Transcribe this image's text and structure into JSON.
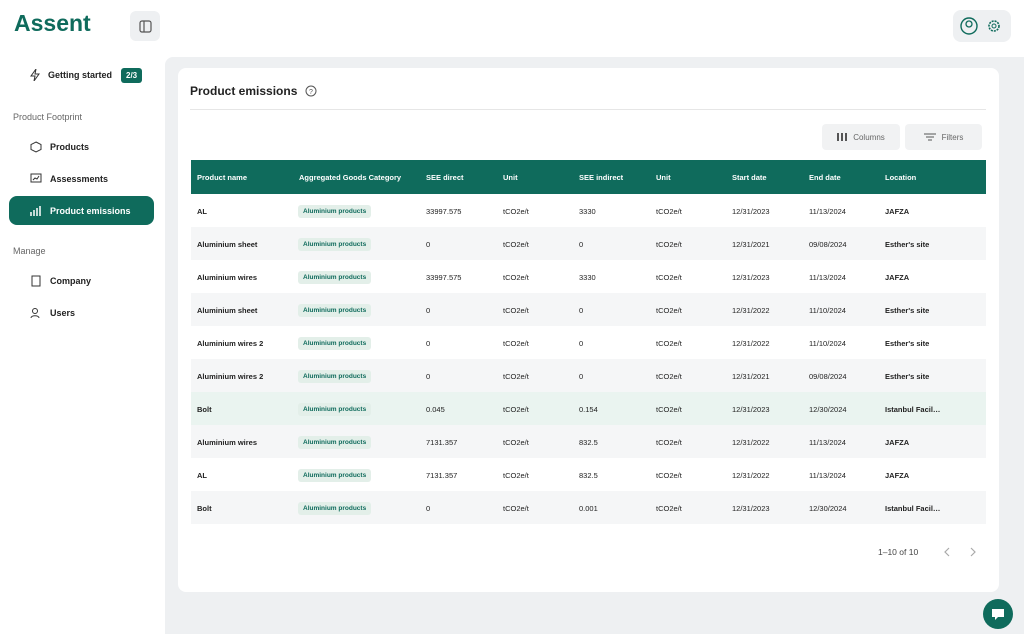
{
  "header": {
    "logo": "Assent"
  },
  "sidebar": {
    "getting_started": {
      "label": "Getting started",
      "badge": "2/3"
    },
    "sections": [
      {
        "title": "Product Footprint",
        "items": [
          "Products",
          "Assessments",
          "Product emissions"
        ]
      },
      {
        "title": "Manage",
        "items": [
          "Company",
          "Users"
        ]
      }
    ]
  },
  "page": {
    "title": "Product emissions",
    "toolbar": [
      "Columns",
      "Filters"
    ],
    "pagination": "1–10 of 10"
  },
  "table": {
    "columns": [
      "Product name",
      "Aggregated Goods Category",
      "SEE direct",
      "Unit",
      "SEE indirect",
      "Unit",
      "Start date",
      "End date",
      "Location"
    ],
    "rows": [
      [
        "AL",
        "Aluminium products",
        "33997.575",
        "tCO2e/t",
        "3330",
        "tCO2e/t",
        "12/31/2023",
        "11/13/2024",
        "JAFZA"
      ],
      [
        "Aluminium sheet",
        "Aluminium products",
        "0",
        "tCO2e/t",
        "0",
        "tCO2e/t",
        "12/31/2021",
        "09/08/2024",
        "Esther's site"
      ],
      [
        "Aluminium wires",
        "Aluminium products",
        "33997.575",
        "tCO2e/t",
        "3330",
        "tCO2e/t",
        "12/31/2023",
        "11/13/2024",
        "JAFZA"
      ],
      [
        "Aluminium sheet",
        "Aluminium products",
        "0",
        "tCO2e/t",
        "0",
        "tCO2e/t",
        "12/31/2022",
        "11/10/2024",
        "Esther's site"
      ],
      [
        "Aluminium wires 2",
        "Aluminium products",
        "0",
        "tCO2e/t",
        "0",
        "tCO2e/t",
        "12/31/2022",
        "11/10/2024",
        "Esther's site"
      ],
      [
        "Aluminium wires 2",
        "Aluminium products",
        "0",
        "tCO2e/t",
        "0",
        "tCO2e/t",
        "12/31/2021",
        "09/08/2024",
        "Esther's site"
      ],
      [
        "Bolt",
        "Aluminium products",
        "0.045",
        "tCO2e/t",
        "0.154",
        "tCO2e/t",
        "12/31/2023",
        "12/30/2024",
        "Istanbul Facil…"
      ],
      [
        "Aluminium wires",
        "Aluminium products",
        "7131.357",
        "tCO2e/t",
        "832.5",
        "tCO2e/t",
        "12/31/2022",
        "11/13/2024",
        "JAFZA"
      ],
      [
        "AL",
        "Aluminium products",
        "7131.357",
        "tCO2e/t",
        "832.5",
        "tCO2e/t",
        "12/31/2022",
        "11/13/2024",
        "JAFZA"
      ],
      [
        "Bolt",
        "Aluminium products",
        "0",
        "tCO2e/t",
        "0.001",
        "tCO2e/t",
        "12/31/2023",
        "12/30/2024",
        "Istanbul Facil…"
      ]
    ]
  }
}
